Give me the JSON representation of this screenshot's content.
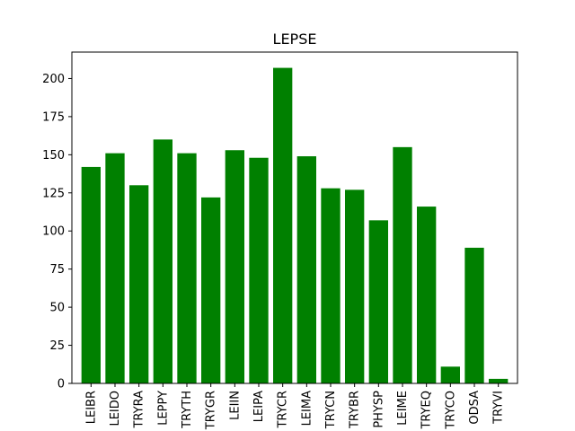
{
  "chart_data": {
    "type": "bar",
    "title": "LEPSE",
    "xlabel": "",
    "ylabel": "",
    "categories": [
      "LEIBR",
      "LEIDO",
      "TRYRA",
      "LEPPY",
      "TRYTH",
      "TRYGR",
      "LEIIN",
      "LEIPA",
      "TRYCR",
      "LEIMA",
      "TRYCN",
      "TRYBR",
      "PHYSP",
      "LEIME",
      "TRYEQ",
      "TRYCO",
      "ODSA",
      "TRYVI"
    ],
    "values": [
      142,
      151,
      130,
      160,
      151,
      122,
      153,
      148,
      207,
      149,
      128,
      127,
      107,
      155,
      116,
      11,
      89,
      3
    ],
    "ylim": [
      0,
      217.35
    ],
    "yticks": [
      0,
      25,
      50,
      75,
      100,
      125,
      150,
      175,
      200
    ],
    "grid": false,
    "bar_color": "#008000"
  }
}
